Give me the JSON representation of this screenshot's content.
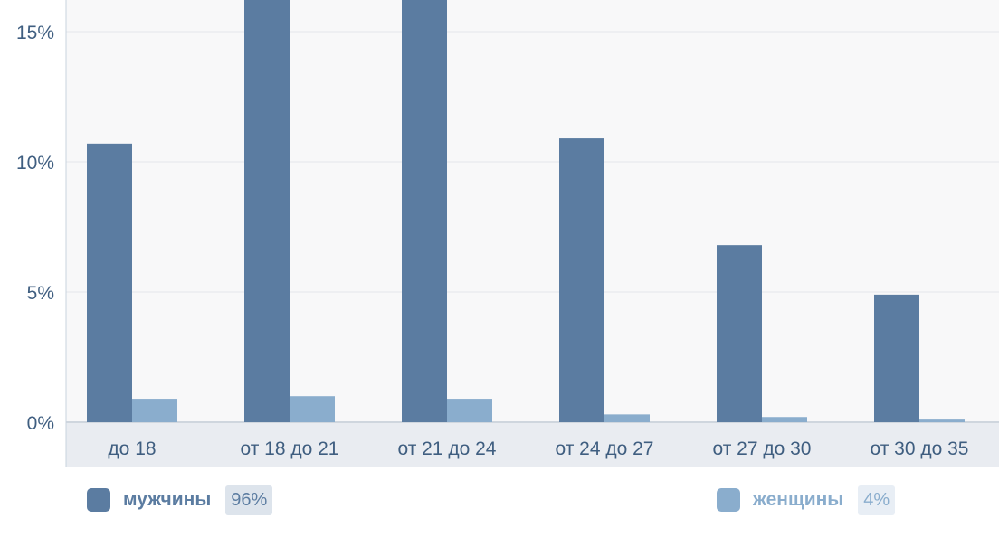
{
  "colors": {
    "men": "#5b7ca1",
    "women": "#8aadcd",
    "plot_bg": "#f8f8f9",
    "grid": "#e3e6ea",
    "axis_label": "#3f5e80",
    "xaxis_bg": "#e9ecf1"
  },
  "chart_data": {
    "type": "bar",
    "categories": [
      "до 18",
      "от 18 до 21",
      "от 21 до 24",
      "от 24 до 27",
      "от 27 до 30",
      "от 30 до 35"
    ],
    "series": [
      {
        "name": "мужчины",
        "values": [
          10.7,
          17.5,
          17.5,
          10.9,
          6.8,
          4.9
        ]
      },
      {
        "name": "женщины",
        "values": [
          0.9,
          1.0,
          0.9,
          0.3,
          0.2,
          0.1
        ]
      }
    ],
    "yticks": [
      "0%",
      "5%",
      "10%",
      "15%"
    ],
    "ylim": [
      0,
      16.3
    ],
    "grid": true
  },
  "legend": [
    {
      "label": "мужчины",
      "share": "96%"
    },
    {
      "label": "женщины",
      "share": "4%"
    }
  ]
}
